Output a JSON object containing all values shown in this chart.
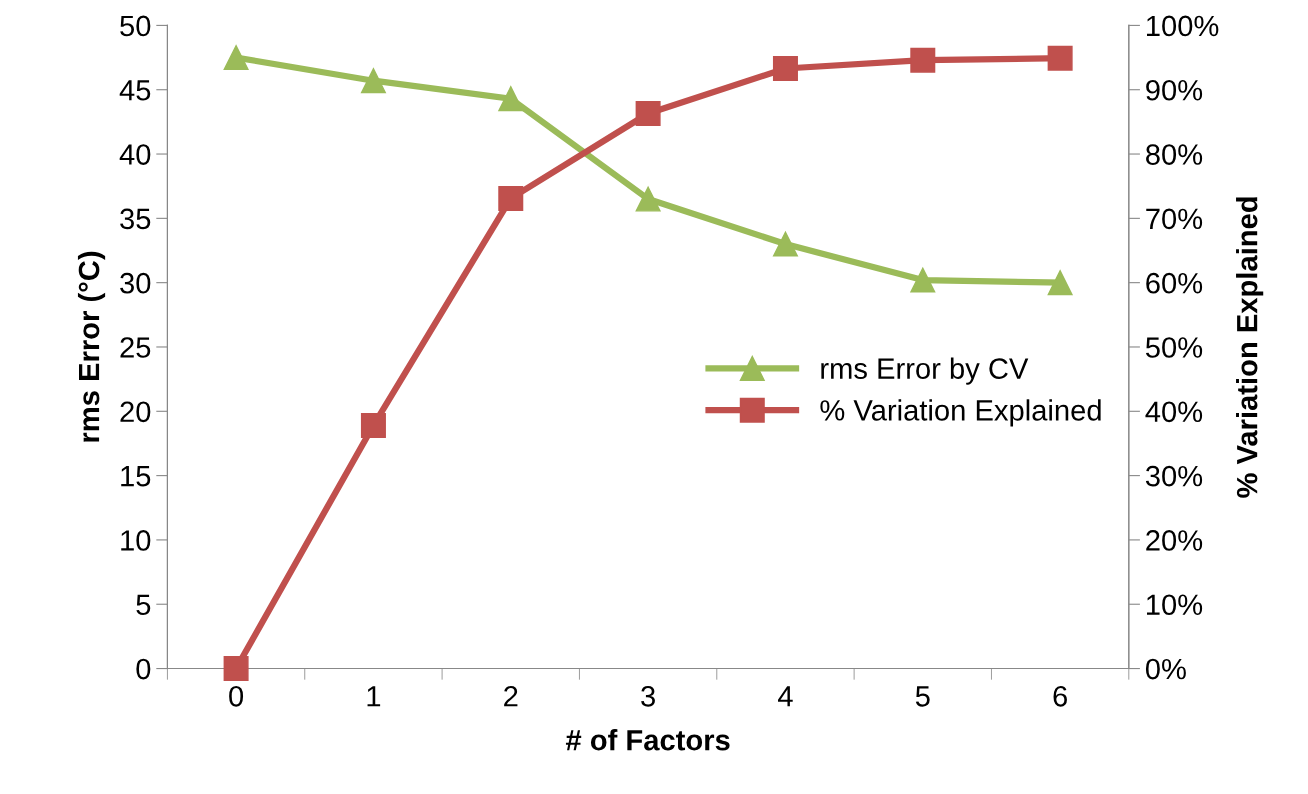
{
  "chart_data": {
    "type": "line",
    "xlabel": "# of Factors",
    "ylabel": "rms Error (°C)",
    "y2label": "% Variation Explained",
    "categories": [
      "0",
      "1",
      "2",
      "3",
      "4",
      "5",
      "6"
    ],
    "series": [
      {
        "name": "rms Error by CV",
        "color": "#9bbb59",
        "marker": "triangle",
        "values": [
          47.5,
          45.7,
          44.3,
          36.5,
          33.0,
          30.2,
          30.0
        ]
      },
      {
        "name": "% Variation Explained",
        "color": "#c0504d",
        "marker": "square",
        "axis": "y2",
        "values": [
          0,
          37.8,
          73.1,
          86.3,
          93.3,
          94.6,
          94.9
        ]
      }
    ],
    "ylim": [
      0,
      50
    ],
    "yticks": [
      0,
      5,
      10,
      15,
      20,
      25,
      30,
      35,
      40,
      45,
      50
    ],
    "y2lim": [
      0,
      100
    ],
    "y2ticks": [
      {
        "value": 0,
        "label": "0%"
      },
      {
        "value": 10,
        "label": "10%"
      },
      {
        "value": 20,
        "label": "20%"
      },
      {
        "value": 30,
        "label": "30%"
      },
      {
        "value": 40,
        "label": "40%"
      },
      {
        "value": 50,
        "label": "50%"
      },
      {
        "value": 60,
        "label": "60%"
      },
      {
        "value": 70,
        "label": "70%"
      },
      {
        "value": 80,
        "label": "80%"
      },
      {
        "value": 90,
        "label": "90%"
      },
      {
        "value": 100,
        "label": "100%"
      }
    ],
    "grid": false,
    "legend": "right",
    "line_style": "solid"
  }
}
